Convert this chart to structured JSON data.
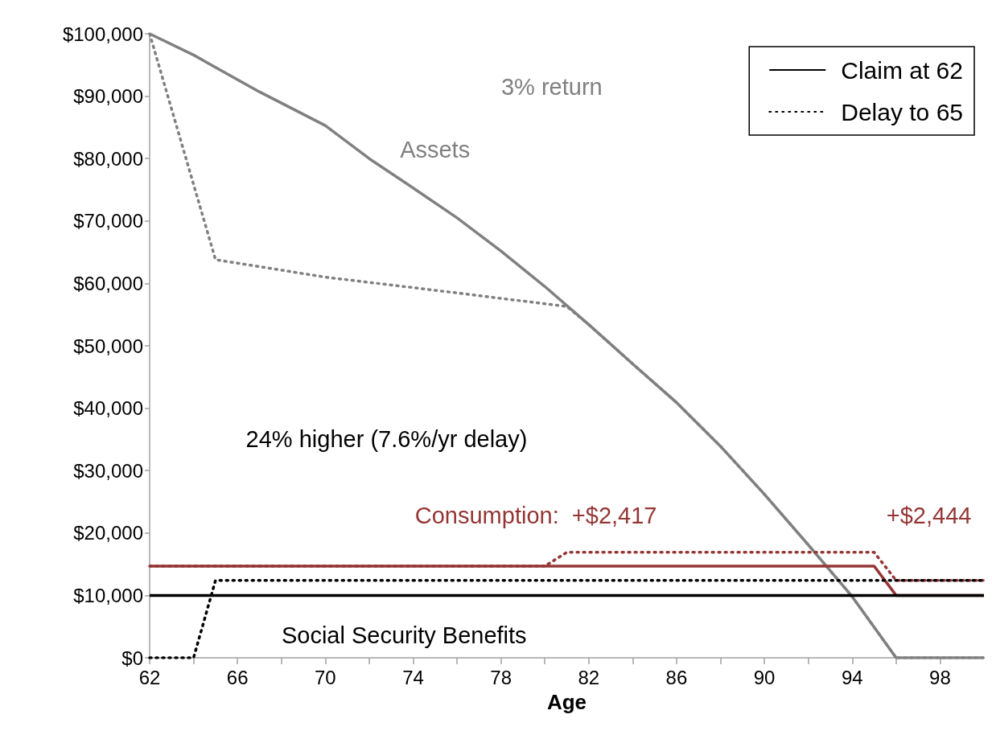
{
  "chart_data": {
    "type": "line",
    "xlabel": "Age",
    "xlim": [
      62,
      100
    ],
    "ylim": [
      0,
      100000
    ],
    "xticks": [
      62,
      {
        "value": 64,
        "label": null
      },
      66,
      {
        "value": 68,
        "label": null
      },
      70,
      {
        "value": 72,
        "label": null
      },
      74,
      {
        "value": 76,
        "label": null
      },
      78,
      {
        "value": 80,
        "label": null
      },
      82,
      {
        "value": 84,
        "label": null
      },
      86,
      {
        "value": 88,
        "label": null
      },
      90,
      {
        "value": 92,
        "label": null
      },
      94,
      {
        "value": 96,
        "label": null
      },
      98
    ],
    "yticks": [
      {
        "value": 0,
        "label": "$0"
      },
      {
        "value": 10000,
        "label": "$10,000"
      },
      {
        "value": 20000,
        "label": "$20,000"
      },
      {
        "value": 30000,
        "label": "$30,000"
      },
      {
        "value": 40000,
        "label": "$40,000"
      },
      {
        "value": 50000,
        "label": "$50,000"
      },
      {
        "value": 60000,
        "label": "$60,000"
      },
      {
        "value": 70000,
        "label": "$70,000"
      },
      {
        "value": 80000,
        "label": "$80,000"
      },
      {
        "value": 90000,
        "label": "$90,000"
      },
      {
        "value": 100000,
        "label": "$100,000"
      }
    ],
    "grid": false,
    "legend": "top right",
    "marker": "none",
    "series": [
      {
        "color": "#808080",
        "line_style": "solid",
        "x": [
          62,
          64,
          67,
          70,
          72,
          74,
          76,
          78,
          80,
          82,
          84,
          86,
          88,
          90,
          92,
          94,
          96,
          100
        ],
        "values": [
          100000,
          96600,
          90700,
          85300,
          80000,
          75300,
          70500,
          65200,
          59500,
          53400,
          47100,
          40900,
          33900,
          26200,
          18100,
          9800,
          0,
          0
        ]
      },
      {
        "color": "#808080",
        "line_style": "dotted",
        "x": [
          62,
          65,
          70,
          75,
          81,
          82,
          84,
          86,
          88,
          90,
          92,
          94,
          96,
          100
        ],
        "values": [
          100000,
          63800,
          61000,
          58900,
          56300,
          53400,
          47100,
          40900,
          33900,
          26200,
          18100,
          9800,
          0,
          0
        ]
      },
      {
        "color": "#943634",
        "line_style": "solid",
        "x": [
          62,
          95,
          96,
          100
        ],
        "values": [
          14700,
          14700,
          10000,
          10000
        ]
      },
      {
        "color": "#943634",
        "line_style": "dotted",
        "x": [
          62,
          80,
          81,
          95,
          96,
          100
        ],
        "values": [
          14700,
          14700,
          16900,
          16900,
          12400,
          12400
        ]
      },
      {
        "name": "Claim at 62",
        "color": "#000000",
        "line_style": "solid",
        "x": [
          62,
          100
        ],
        "values": [
          10000,
          10000
        ]
      },
      {
        "name": "Delay to 65",
        "color": "#000000",
        "line_style": "dotted",
        "x": [
          62,
          64,
          65,
          100
        ],
        "values": [
          0,
          0,
          12400,
          12400
        ]
      }
    ],
    "annotations": [
      "3% return",
      "Assets",
      "24% higher (7.6%/yr delay)",
      "Consumption:  +$2,417",
      "+$2,444",
      "Social Security Benefits"
    ]
  }
}
